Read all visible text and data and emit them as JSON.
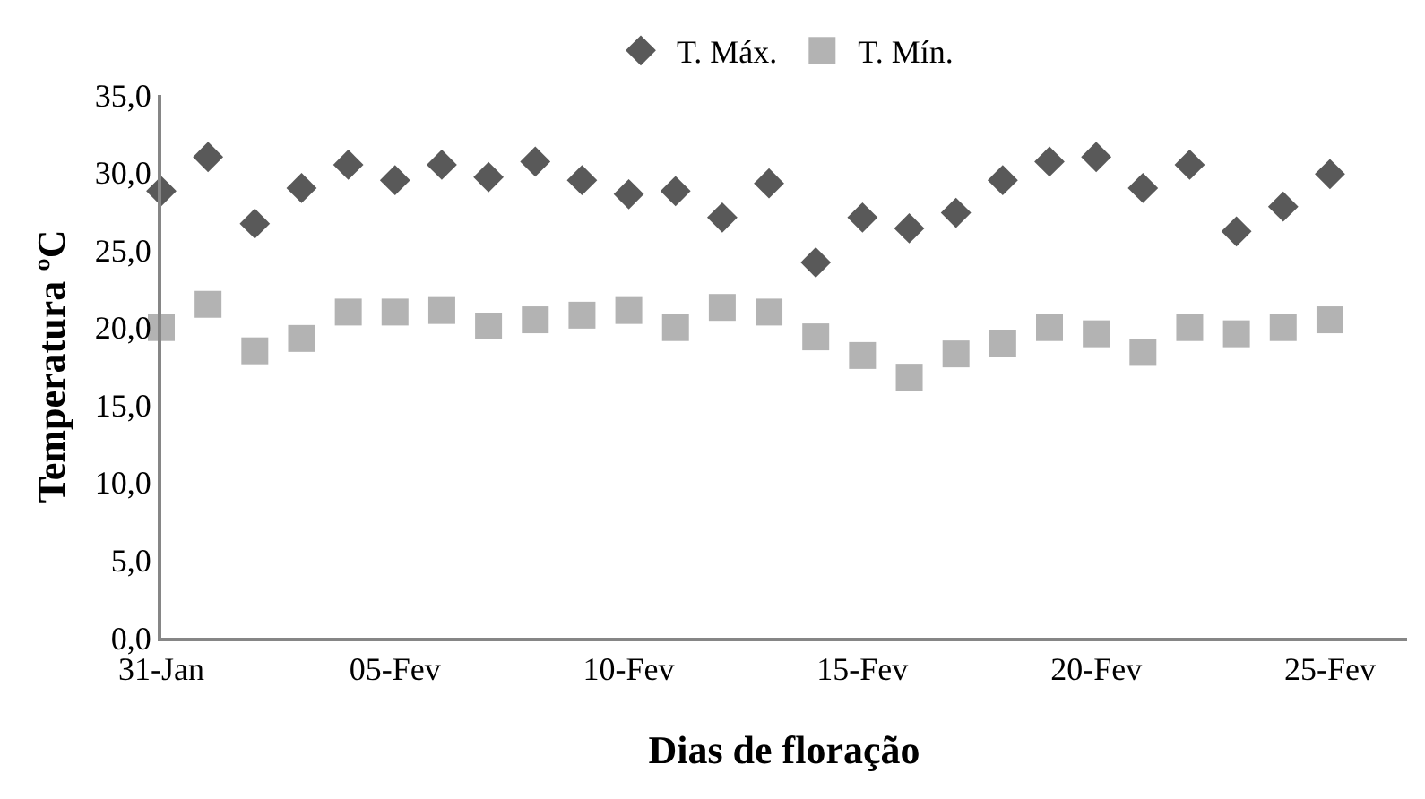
{
  "chart_data": {
    "type": "scatter",
    "xlabel": "Dias de floração",
    "ylabel": "Temperatura ºC",
    "categories": [
      "31-Jan",
      null,
      null,
      null,
      null,
      "05-Fev",
      null,
      null,
      null,
      null,
      "10-Fev",
      null,
      null,
      null,
      null,
      "15-Fev",
      null,
      null,
      null,
      null,
      "20-Fev",
      null,
      null,
      null,
      null,
      "25-Fev"
    ],
    "series": [
      {
        "name": "T. Máx.",
        "color": "#595959",
        "marker": "diamond",
        "values": [
          28.8,
          31.0,
          26.7,
          29.0,
          30.5,
          29.5,
          30.5,
          29.7,
          30.7,
          29.5,
          28.6,
          28.8,
          27.1,
          29.3,
          24.2,
          27.1,
          26.4,
          27.4,
          29.5,
          30.7,
          31.0,
          29.0,
          30.5,
          26.2,
          27.8,
          29.9
        ]
      },
      {
        "name": "T. Mín.",
        "color": "#b3b3b3",
        "marker": "square",
        "values": [
          20.0,
          21.5,
          18.5,
          19.3,
          21.0,
          21.0,
          21.1,
          20.1,
          20.5,
          20.8,
          21.1,
          20.0,
          21.3,
          21.0,
          19.4,
          18.2,
          16.8,
          18.3,
          19.0,
          20.0,
          19.6,
          18.4,
          20.0,
          19.6,
          20.0,
          20.5
        ]
      }
    ],
    "ylim": [
      0,
      35
    ],
    "yticks": [
      {
        "value": 0,
        "label": "0,0"
      },
      {
        "value": 5,
        "label": "5,0"
      },
      {
        "value": 10,
        "label": "10,0"
      },
      {
        "value": 15,
        "label": "15,0"
      },
      {
        "value": 20,
        "label": "20,0"
      },
      {
        "value": 25,
        "label": "25,0"
      },
      {
        "value": 30,
        "label": "30,0"
      },
      {
        "value": 35,
        "label": "35,0"
      }
    ],
    "legend": "top"
  }
}
